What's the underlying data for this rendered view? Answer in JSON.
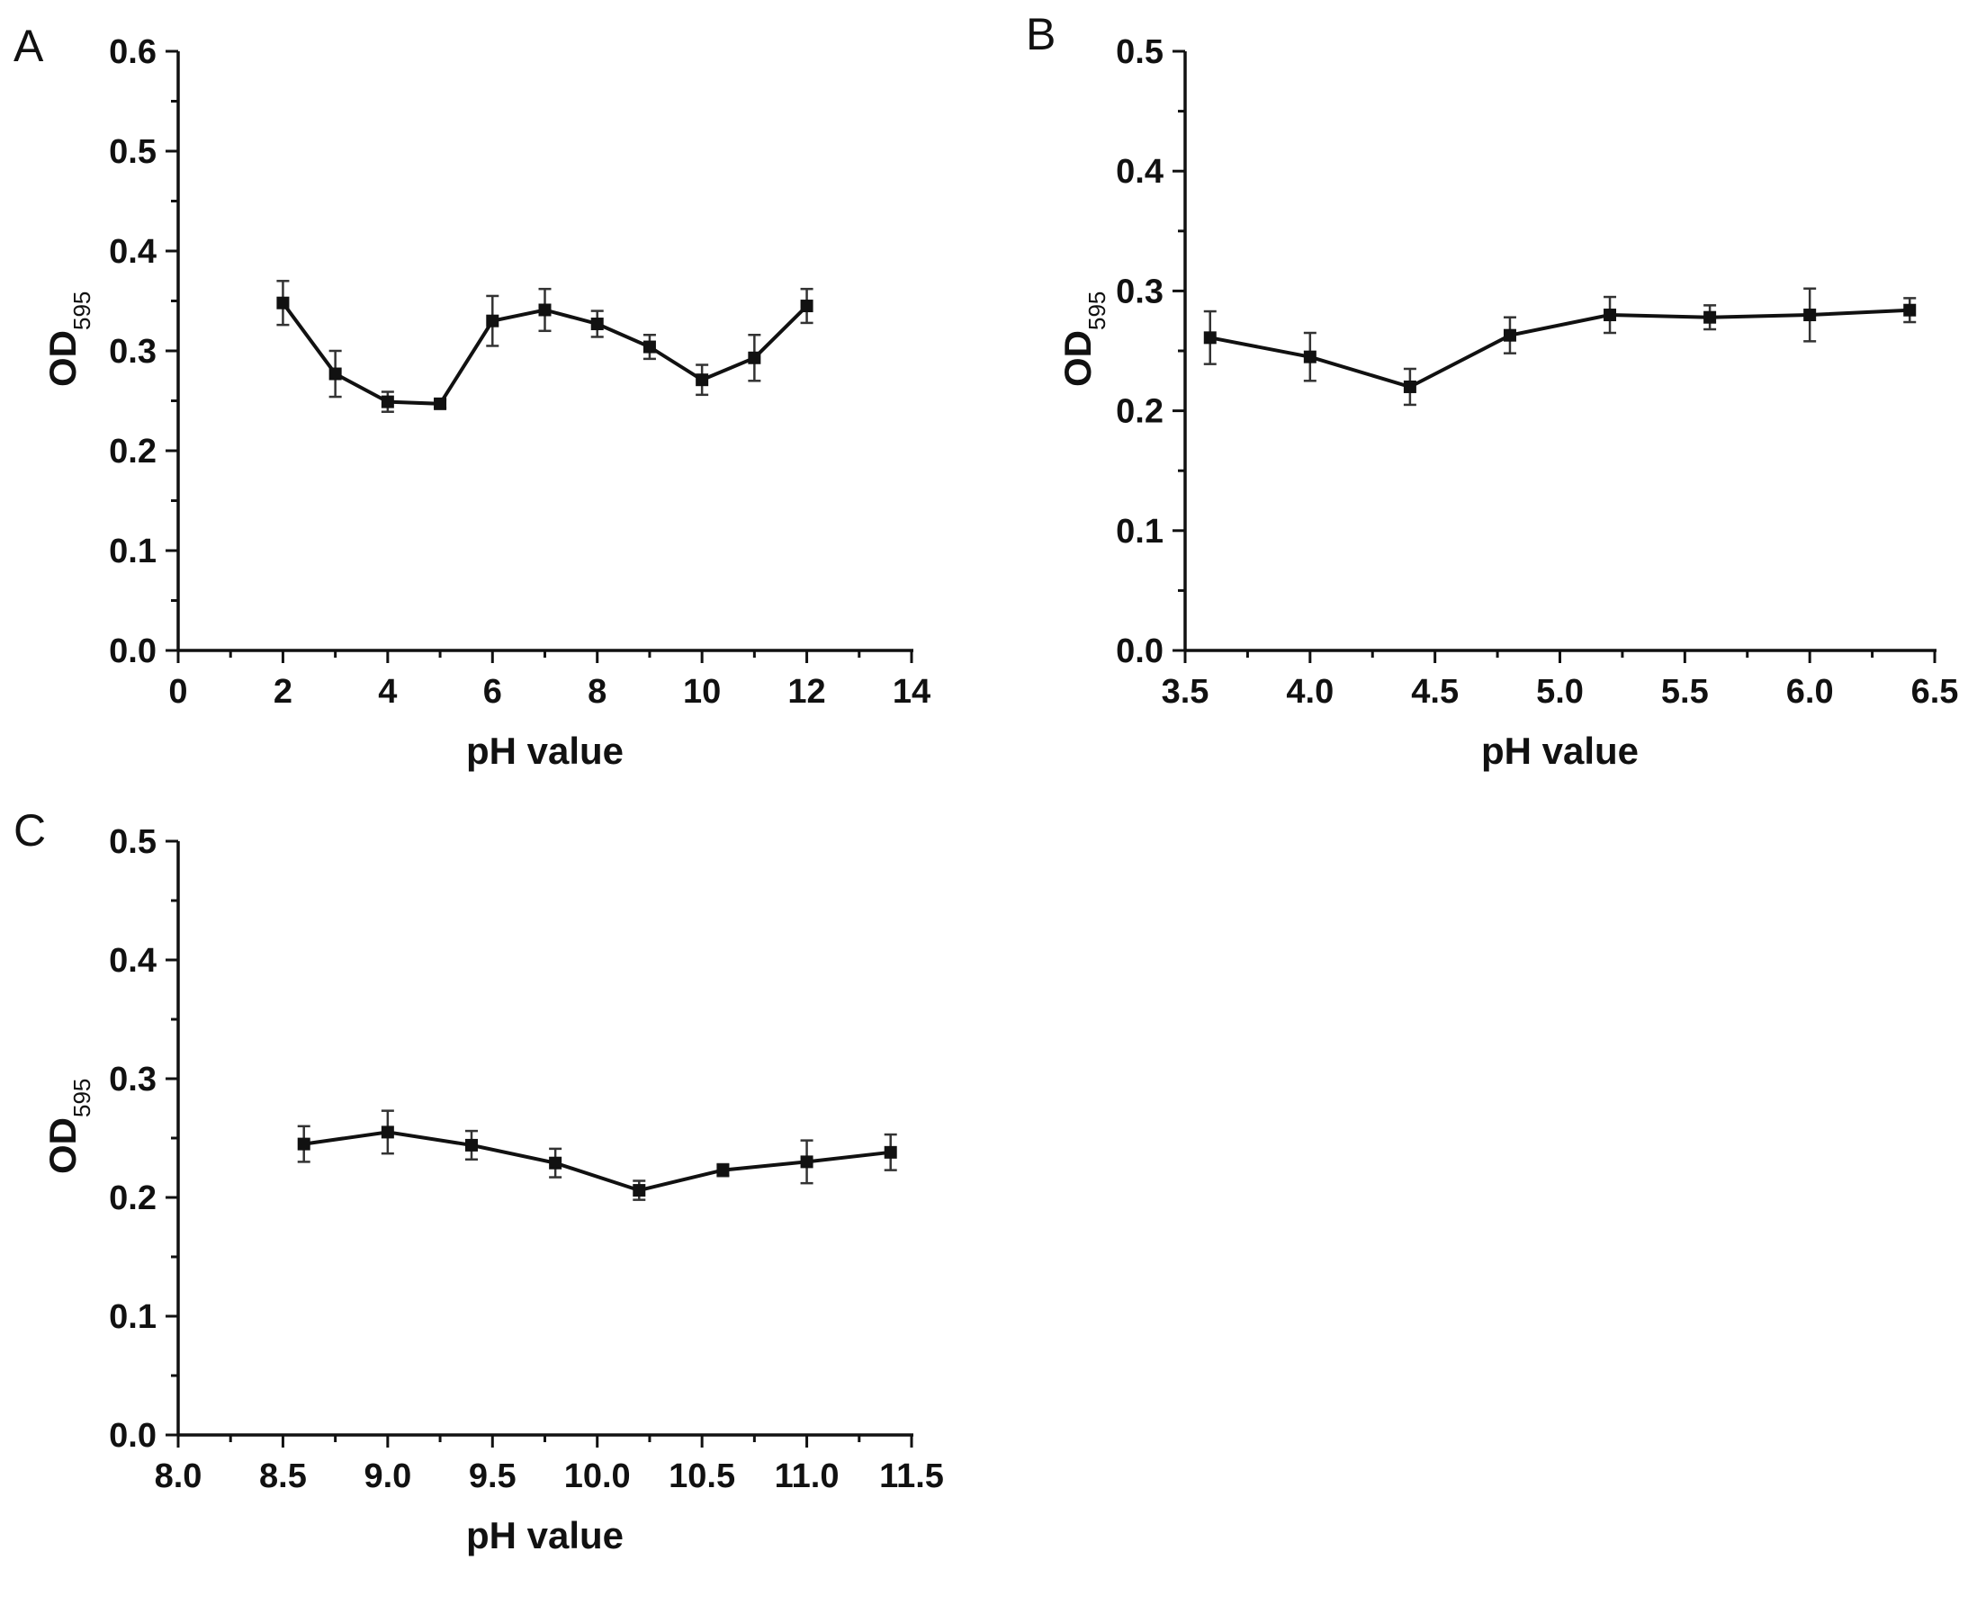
{
  "chart_data": [
    {
      "panel": "A",
      "type": "line",
      "xlabel": "pH value",
      "ylabel_main": "OD",
      "ylabel_sub": "595",
      "xlim": [
        0,
        14
      ],
      "ylim": [
        0,
        0.6
      ],
      "x_ticks": [
        "0",
        "2",
        "4",
        "6",
        "8",
        "10",
        "12",
        "14"
      ],
      "x_tick_values": [
        0,
        2,
        4,
        6,
        8,
        10,
        12,
        14
      ],
      "y_ticks": [
        "0.0",
        "0.1",
        "0.2",
        "0.3",
        "0.4",
        "0.5",
        "0.6"
      ],
      "y_tick_values": [
        0,
        0.1,
        0.2,
        0.3,
        0.4,
        0.5,
        0.6
      ],
      "series": [
        {
          "name": "OD595",
          "x": [
            2,
            3,
            4,
            5,
            6,
            7,
            8,
            9,
            10,
            11,
            12
          ],
          "values": [
            0.348,
            0.277,
            0.249,
            0.247,
            0.33,
            0.341,
            0.327,
            0.304,
            0.271,
            0.293,
            0.345
          ],
          "errors": [
            0.022,
            0.023,
            0.01,
            0.004,
            0.025,
            0.021,
            0.013,
            0.012,
            0.015,
            0.023,
            0.017
          ]
        }
      ]
    },
    {
      "panel": "B",
      "type": "line",
      "xlabel": "pH value",
      "ylabel_main": "OD",
      "ylabel_sub": "595",
      "xlim": [
        3.5,
        6.5
      ],
      "ylim": [
        0,
        0.5
      ],
      "x_ticks": [
        "3.5",
        "4.0",
        "4.5",
        "5.0",
        "5.5",
        "6.0",
        "6.5"
      ],
      "x_tick_values": [
        3.5,
        4.0,
        4.5,
        5.0,
        5.5,
        6.0,
        6.5
      ],
      "y_ticks": [
        "0.0",
        "0.1",
        "0.2",
        "0.3",
        "0.4",
        "0.5"
      ],
      "y_tick_values": [
        0,
        0.1,
        0.2,
        0.3,
        0.4,
        0.5
      ],
      "series": [
        {
          "name": "OD595",
          "x": [
            3.6,
            4.0,
            4.4,
            4.8,
            5.2,
            5.6,
            6.0,
            6.4
          ],
          "values": [
            0.261,
            0.245,
            0.22,
            0.263,
            0.28,
            0.278,
            0.28,
            0.284
          ],
          "errors": [
            0.022,
            0.02,
            0.015,
            0.015,
            0.015,
            0.01,
            0.022,
            0.01
          ]
        }
      ]
    },
    {
      "panel": "C",
      "type": "line",
      "xlabel": "pH value",
      "ylabel_main": "OD",
      "ylabel_sub": "595",
      "xlim": [
        8.0,
        11.5
      ],
      "ylim": [
        0,
        0.5
      ],
      "x_ticks": [
        "8.0",
        "8.5",
        "9.0",
        "9.5",
        "10.0",
        "10.5",
        "11.0",
        "11.5"
      ],
      "x_tick_values": [
        8.0,
        8.5,
        9.0,
        9.5,
        10.0,
        10.5,
        11.0,
        11.5
      ],
      "y_ticks": [
        "0.0",
        "0.1",
        "0.2",
        "0.3",
        "0.4",
        "0.5"
      ],
      "y_tick_values": [
        0,
        0.1,
        0.2,
        0.3,
        0.4,
        0.5
      ],
      "series": [
        {
          "name": "OD595",
          "x": [
            8.6,
            9.0,
            9.4,
            9.8,
            10.2,
            10.6,
            11.0,
            11.4
          ],
          "values": [
            0.245,
            0.255,
            0.244,
            0.229,
            0.206,
            0.223,
            0.23,
            0.238
          ],
          "errors": [
            0.015,
            0.018,
            0.012,
            0.012,
            0.008,
            0.005,
            0.018,
            0.015
          ]
        }
      ]
    }
  ]
}
